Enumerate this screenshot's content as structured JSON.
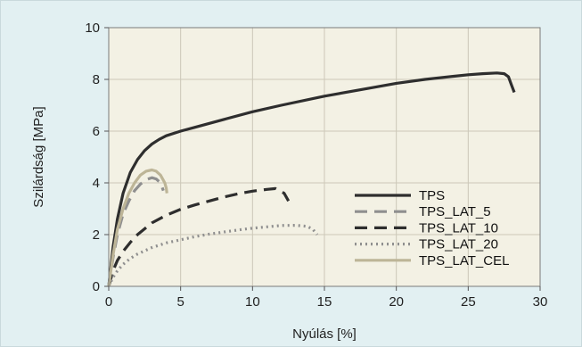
{
  "chart_data": {
    "type": "line",
    "xlabel": "Nyúlás [%]",
    "ylabel": "Szilárdság [MPa]",
    "xlim": [
      0,
      30
    ],
    "ylim": [
      0,
      10
    ],
    "xticks": [
      "0",
      "5",
      "10",
      "15",
      "20",
      "25",
      "30"
    ],
    "yticks": [
      "0",
      "2",
      "4",
      "6",
      "8",
      "10"
    ],
    "grid": true,
    "legend_position": "right",
    "series": [
      {
        "name": "TPS",
        "color": "#2e2e2e",
        "dash": "solid",
        "x": [
          0,
          0.3,
          0.6,
          1,
          1.5,
          2,
          2.5,
          3,
          3.5,
          4,
          5,
          6,
          8,
          10,
          12,
          15,
          18,
          20,
          22,
          24,
          25,
          26,
          27,
          27.5,
          27.8,
          28.0,
          28.2
        ],
        "y": [
          0,
          1.5,
          2.6,
          3.6,
          4.4,
          4.9,
          5.25,
          5.5,
          5.68,
          5.82,
          6.0,
          6.15,
          6.45,
          6.75,
          7.0,
          7.35,
          7.65,
          7.85,
          8.0,
          8.12,
          8.18,
          8.22,
          8.25,
          8.22,
          8.1,
          7.8,
          7.5
        ]
      },
      {
        "name": "TPS_LAT_5",
        "color": "#8f8f8f",
        "dash": "dashed",
        "x": [
          0,
          0.3,
          0.6,
          1,
          1.4,
          1.8,
          2.2,
          2.6,
          3.0,
          3.3,
          3.6,
          3.8
        ],
        "y": [
          0,
          1.1,
          2.0,
          2.8,
          3.3,
          3.7,
          3.95,
          4.12,
          4.2,
          4.15,
          4.0,
          3.7
        ]
      },
      {
        "name": "TPS_LAT_10",
        "color": "#2e2e2e",
        "dash": "dashed",
        "x": [
          0,
          0.3,
          0.6,
          1,
          1.5,
          2,
          3,
          4,
          5,
          6,
          7,
          8,
          9,
          10,
          11,
          11.6,
          12.2,
          12.5
        ],
        "y": [
          0,
          0.6,
          1.0,
          1.35,
          1.7,
          2.0,
          2.45,
          2.75,
          2.98,
          3.15,
          3.3,
          3.45,
          3.58,
          3.68,
          3.75,
          3.78,
          3.6,
          3.3
        ]
      },
      {
        "name": "TPS_LAT_20",
        "color": "#8f8f8f",
        "dash": "dotted",
        "x": [
          0,
          0.3,
          0.6,
          1,
          1.5,
          2,
          3,
          4,
          5,
          6,
          7,
          8,
          9,
          10,
          11,
          12,
          13,
          13.8,
          14.2,
          14.5
        ],
        "y": [
          0,
          0.35,
          0.6,
          0.85,
          1.08,
          1.25,
          1.5,
          1.68,
          1.8,
          1.92,
          2.02,
          2.1,
          2.18,
          2.25,
          2.3,
          2.35,
          2.36,
          2.32,
          2.2,
          2.0
        ]
      },
      {
        "name": "TPS_LAT_CEL",
        "color": "#bdb597",
        "dash": "solid",
        "x": [
          0,
          0.3,
          0.6,
          1,
          1.4,
          1.8,
          2.2,
          2.6,
          3.0,
          3.3,
          3.6,
          3.9,
          4.0,
          4.05
        ],
        "y": [
          0,
          1.2,
          2.2,
          3.0,
          3.6,
          4.0,
          4.3,
          4.45,
          4.5,
          4.45,
          4.3,
          4.0,
          3.8,
          3.6
        ]
      }
    ]
  }
}
